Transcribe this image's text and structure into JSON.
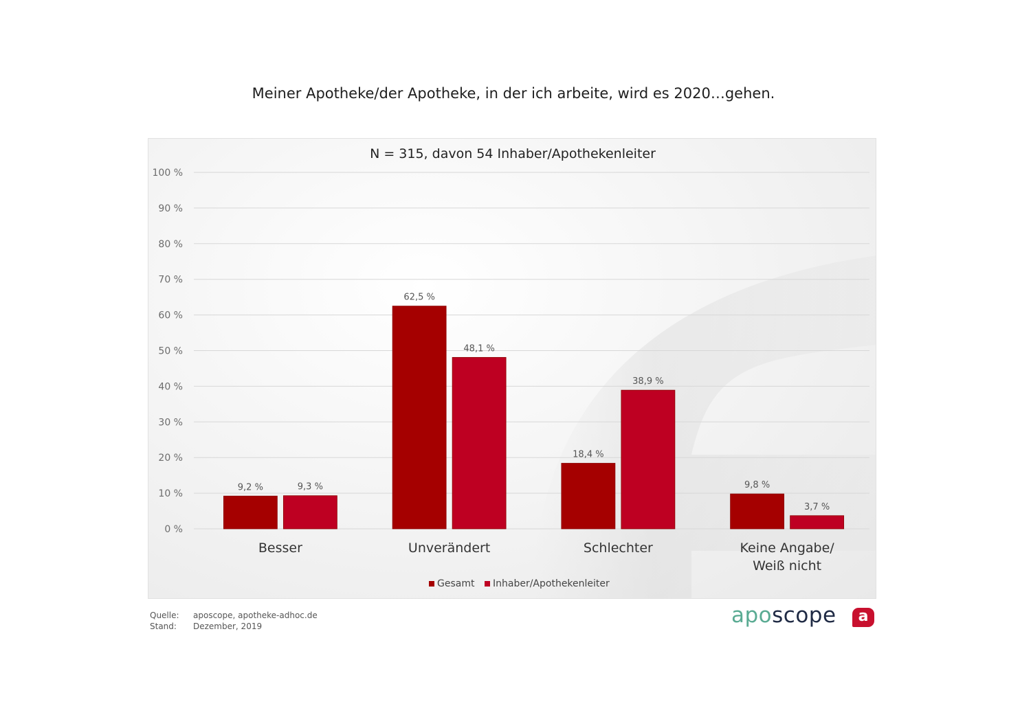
{
  "title": "Meiner Apotheke/der Apotheke, in der ich arbeite, wird es 2020…gehen.",
  "footer": {
    "source_label": "Quelle:",
    "source_value": "aposcope, apotheke-adhoc.de",
    "date_label": "Stand:",
    "date_value": "Dezember,  2019"
  },
  "logo": {
    "part1": "apo",
    "part2": "scope",
    "badge": "a",
    "color1": "#5aab93",
    "color2": "#1f2a44",
    "badge_color": "#c8102e"
  },
  "chart_data": {
    "type": "bar",
    "subtitle": "N = 315, davon 54 Inhaber/Apothekenleiter",
    "categories": [
      [
        "Besser"
      ],
      [
        "Unverändert"
      ],
      [
        "Schlechter"
      ],
      [
        "Keine Angabe/",
        "Weiß nicht"
      ]
    ],
    "series": [
      {
        "name": "Gesamt",
        "color": "#a50000",
        "values": [
          9.2,
          62.5,
          18.4,
          9.8
        ],
        "labels": [
          "9,2 %",
          "62,5 %",
          "18,4 %",
          "9,8 %"
        ]
      },
      {
        "name": "Inhaber/Apothekenleiter",
        "color": "#be0022",
        "values": [
          9.3,
          48.1,
          38.9,
          3.7
        ],
        "labels": [
          "9,3 %",
          "48,1 %",
          "38,9 %",
          "3,7 %"
        ]
      }
    ],
    "yticks": [
      0,
      10,
      20,
      30,
      40,
      50,
      60,
      70,
      80,
      90,
      100
    ],
    "ytick_labels": [
      "0 %",
      "10 %",
      "20 %",
      "30 %",
      "40 %",
      "50 %",
      "60 %",
      "70 %",
      "80 %",
      "90 %",
      "100 %"
    ],
    "ylim": [
      0,
      100
    ],
    "grid": true,
    "legend_position": "bottom-center"
  }
}
